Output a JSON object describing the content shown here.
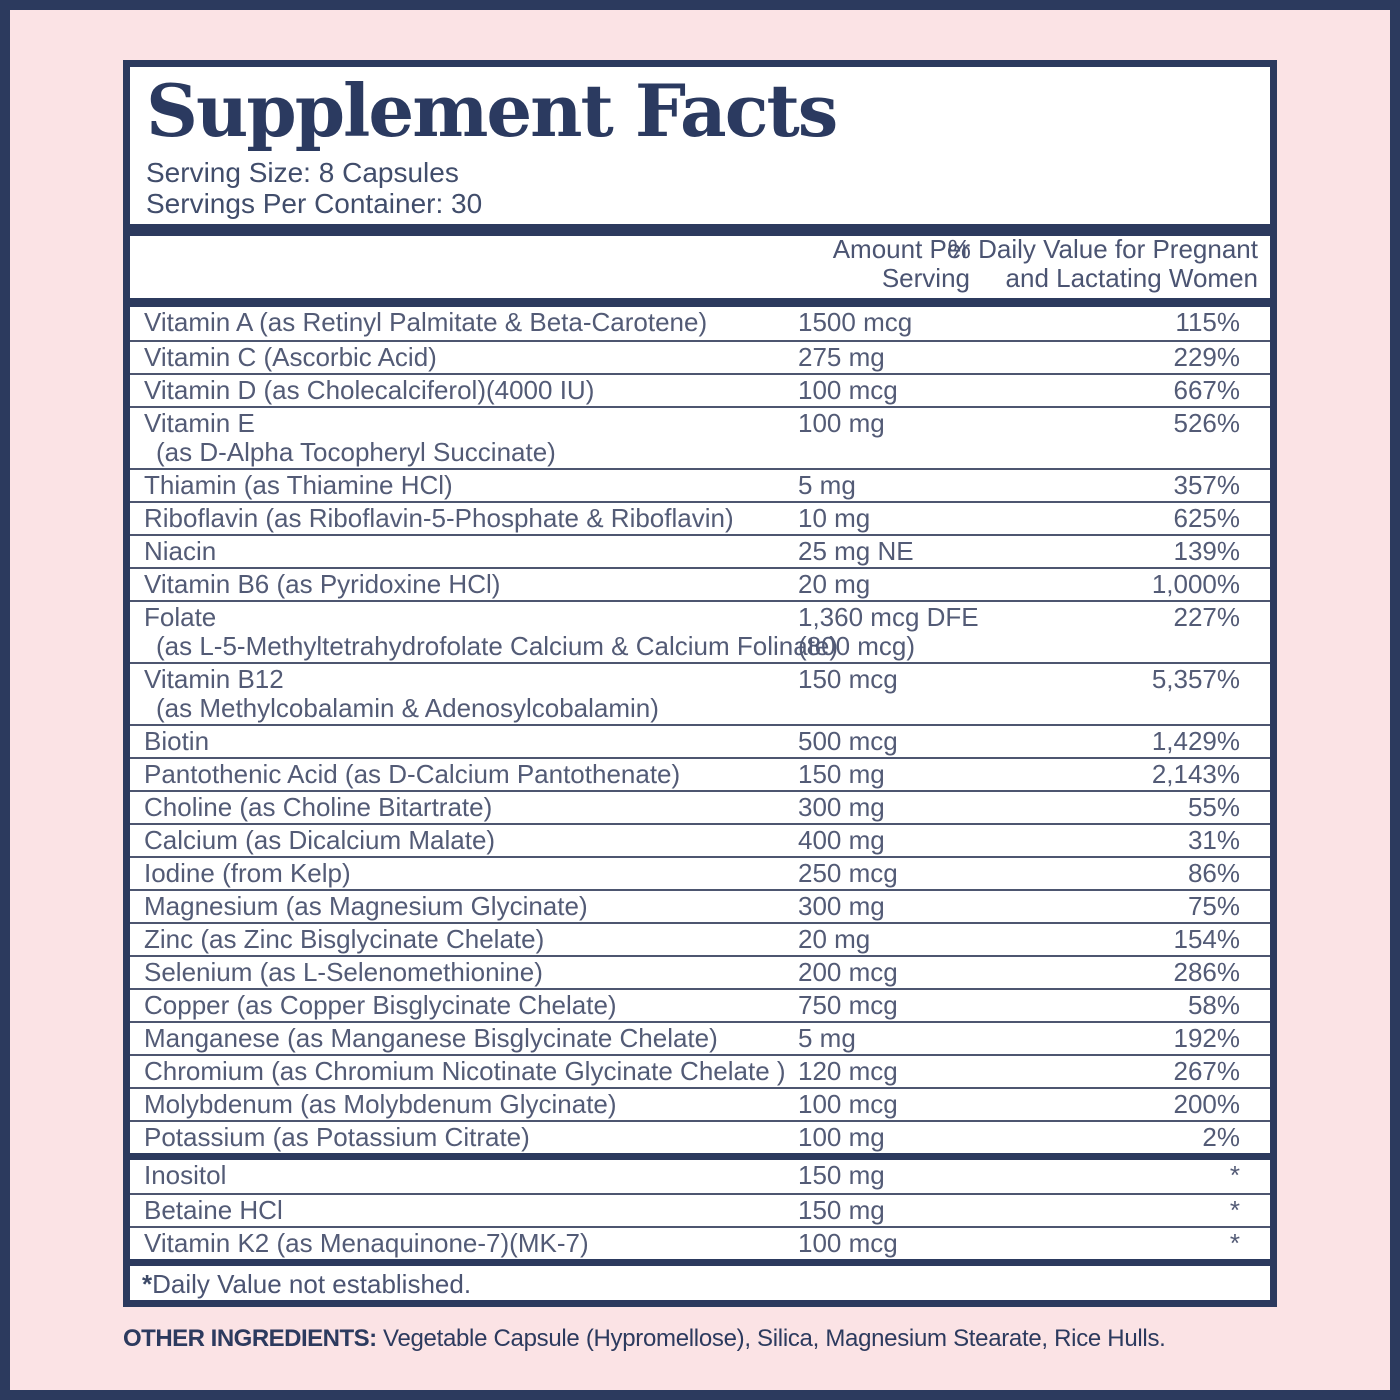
{
  "colors": {
    "navy": "#2c3a5e",
    "pink_background": "#fbe3e5",
    "row_text": "#535b76",
    "panel_background": "#ffffff"
  },
  "panel": {
    "title": "Supplement Facts",
    "serving_size": "Serving Size: 8 Capsules",
    "servings_per_container": "Servings Per Container: 30",
    "columns": {
      "amount": "Amount Per Serving",
      "dv_line1": "% Daily Value for Pregnant",
      "dv_line2": "and Lactating Women"
    },
    "rows": [
      {
        "group": 1,
        "name": "Vitamin A (as Retinyl Palmitate & Beta-Carotene)",
        "amount": "1500 mcg",
        "dv": "115%"
      },
      {
        "group": 1,
        "name": "Vitamin C (Ascorbic Acid)",
        "amount": "275 mg",
        "dv": "229%"
      },
      {
        "group": 1,
        "name": "Vitamin D (as Cholecalciferol)(4000 IU)",
        "amount": "100 mcg",
        "dv": "667%"
      },
      {
        "group": 1,
        "name": "Vitamin E",
        "name2": "(as D-Alpha Tocopheryl Succinate)",
        "amount": "100 mg",
        "dv": "526%"
      },
      {
        "group": 1,
        "name": "Thiamin (as Thiamine HCl)",
        "amount": "5 mg",
        "dv": "357%"
      },
      {
        "group": 1,
        "name": "Riboflavin (as Riboflavin-5-Phosphate & Riboflavin)",
        "amount": "10 mg",
        "dv": "625%"
      },
      {
        "group": 1,
        "name": "Niacin",
        "amount": "25 mg NE",
        "dv": "139%"
      },
      {
        "group": 1,
        "name": "Vitamin B6 (as Pyridoxine HCl)",
        "amount": "20 mg",
        "dv": "1,000%"
      },
      {
        "group": 1,
        "name": "Folate",
        "name2": "(as L-5-Methyltetrahydrofolate Calcium & Calcium Folinate)",
        "amount": "1,360 mcg DFE",
        "amount2": "(800 mcg)",
        "dv": "227%"
      },
      {
        "group": 1,
        "name": "Vitamin B12",
        "name2": "(as Methylcobalamin & Adenosylcobalamin)",
        "amount": "150 mcg",
        "dv": "5,357%"
      },
      {
        "group": 1,
        "name": "Biotin",
        "amount": "500 mcg",
        "dv": "1,429%"
      },
      {
        "group": 1,
        "name": "Pantothenic Acid (as D-Calcium Pantothenate)",
        "amount": "150 mg",
        "dv": "2,143%"
      },
      {
        "group": 1,
        "name": "Choline (as Choline Bitartrate)",
        "amount": "300 mg",
        "dv": "55%"
      },
      {
        "group": 1,
        "name": "Calcium (as Dicalcium Malate)",
        "amount": "400 mg",
        "dv": "31%"
      },
      {
        "group": 1,
        "name": "Iodine (from Kelp)",
        "amount": "250 mcg",
        "dv": "86%"
      },
      {
        "group": 1,
        "name": "Magnesium (as Magnesium Glycinate)",
        "amount": "300 mg",
        "dv": "75%"
      },
      {
        "group": 1,
        "name": "Zinc (as Zinc Bisglycinate Chelate)",
        "amount": "20 mg",
        "dv": "154%"
      },
      {
        "group": 1,
        "name": "Selenium (as L-Selenomethionine)",
        "amount": "200 mcg",
        "dv": "286%"
      },
      {
        "group": 1,
        "name": "Copper (as Copper Bisglycinate Chelate)",
        "amount": "750 mcg",
        "dv": "58%"
      },
      {
        "group": 1,
        "name": "Manganese (as Manganese Bisglycinate Chelate)",
        "amount": "5 mg",
        "dv": "192%"
      },
      {
        "group": 1,
        "name": "Chromium (as Chromium Nicotinate Glycinate Chelate )",
        "amount": "120 mcg",
        "dv": "267%"
      },
      {
        "group": 1,
        "name": "Molybdenum (as Molybdenum Glycinate)",
        "amount": "100 mcg",
        "dv": "200%"
      },
      {
        "group": 1,
        "name": "Potassium (as Potassium Citrate)",
        "amount": "100 mg",
        "dv": "2%"
      },
      {
        "group": 2,
        "name": "Inositol",
        "amount": "150 mg",
        "dv": "*"
      },
      {
        "group": 2,
        "name": "Betaine HCl",
        "amount": "150 mg",
        "dv": "*"
      },
      {
        "group": 2,
        "name": "Vitamin K2 (as Menaquinone-7)(MK-7)",
        "amount": "100 mcg",
        "dv": "*"
      }
    ],
    "footnote_asterisk": "*",
    "footnote": "Daily Value not established."
  },
  "other_ingredients": {
    "label": "OTHER INGREDIENTS:",
    "text": " Vegetable Capsule (Hypromellose), Silica, Magnesium Stearate, Rice Hulls."
  }
}
